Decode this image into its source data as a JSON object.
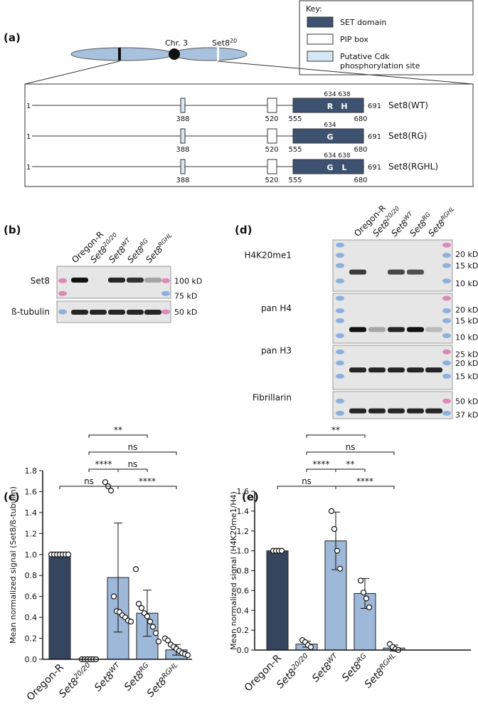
{
  "panels": {
    "a": "(a)",
    "b": "(b)",
    "c": "(c)",
    "d": "(d)",
    "e": "(e)"
  },
  "key": {
    "title": "Key:",
    "items": [
      {
        "label": [
          "SET domain"
        ],
        "color": "#3d5270"
      },
      {
        "label": [
          "PIP box"
        ],
        "color": "#ffffff"
      },
      {
        "label": [
          "Putative Cdk",
          "phosphorylation site"
        ],
        "color": "#d6e8f5"
      }
    ]
  },
  "chromosome": {
    "name": "Chr. 3",
    "allele": "Set8",
    "allele_sup": "20"
  },
  "constructs": [
    {
      "name": "Set8(WT)",
      "start": 1,
      "end": 691,
      "cdk": 388,
      "pip": 520,
      "set_start": 555,
      "set_end": 680,
      "residues": [
        {
          "position": 634,
          "aa": "R"
        },
        {
          "position": 638,
          "aa": "H"
        }
      ]
    },
    {
      "name": "Set8(RG)",
      "start": 1,
      "end": 691,
      "cdk": 388,
      "pip": 520,
      "set_start": 555,
      "set_end": 680,
      "residues": [
        {
          "position": 634,
          "aa": "G"
        }
      ]
    },
    {
      "name": "Set8(RGHL)",
      "start": 1,
      "end": 691,
      "cdk": 388,
      "pip": 520,
      "set_start": 555,
      "set_end": 680,
      "residues": [
        {
          "position": 634,
          "aa": "G"
        },
        {
          "position": 638,
          "aa": "L"
        }
      ]
    }
  ],
  "lanes": [
    {
      "text": "Oregon-R"
    },
    {
      "text": "Set8",
      "sup": "20/20"
    },
    {
      "text": "Set8",
      "sup": "WT"
    },
    {
      "text": "Set8",
      "sup": "RG"
    },
    {
      "text": "Set8",
      "sup": "RGHL"
    }
  ],
  "blot_b": {
    "rows": [
      {
        "label": "Set8",
        "markers": [
          "100 kD",
          "75 kD"
        ]
      },
      {
        "label": "ß-tubulin",
        "markers": [
          "50 kD"
        ]
      }
    ]
  },
  "blot_d": {
    "rows": [
      {
        "label": "H4K20me1",
        "markers": [
          "20 kD",
          "15 kD",
          "10 kD"
        ]
      },
      {
        "label": "pan H4",
        "markers": [
          "20 kD",
          "15 kD",
          "10 kD"
        ]
      },
      {
        "label": "pan H3",
        "markers": [
          "25 kD",
          "20 kD",
          "15 kD"
        ]
      },
      {
        "label": "Fibrillarin",
        "markers": [
          "50 kD",
          "37 kD"
        ]
      }
    ]
  },
  "chart_data": [
    {
      "type": "bar",
      "y_label": "Mean normalized signal (Set8/ß-tubulin)",
      "categories": [
        {
          "text": "Oregon-R"
        },
        {
          "text": "Set8",
          "sup": "20/20"
        },
        {
          "text": "Set8",
          "sup": "WT"
        },
        {
          "text": "Set8",
          "sup": "RG"
        },
        {
          "text": "Set8",
          "sup": "RGHL"
        }
      ],
      "values": [
        1.0,
        0.0,
        0.78,
        0.44,
        0.09
      ],
      "errors": [
        0,
        0,
        0.52,
        0.22,
        0.05
      ],
      "bar_colors": [
        "#36455e",
        "#9db8d8",
        "#9db8d8",
        "#9db8d8",
        "#9db8d8"
      ],
      "points": [
        [
          1,
          1,
          1,
          1,
          1,
          1,
          1
        ],
        [
          0,
          0,
          0,
          0,
          0,
          0
        ],
        [
          1.69,
          1.65,
          1.61,
          0.6,
          0.46,
          0.45,
          0.42,
          0.4,
          0.37,
          0.36
        ],
        [
          0.86,
          0.53,
          0.49,
          0.44,
          0.41,
          0.36,
          0.31,
          0.25,
          0.17
        ],
        [
          0.2,
          0.18,
          0.14,
          0.12,
          0.1,
          0.08,
          0.06,
          0.05,
          0.04
        ]
      ],
      "ylim": [
        0,
        1.8
      ],
      "yticks": [
        {
          "value": 0,
          "label": "0.0"
        },
        0.2,
        0.4,
        0.6,
        0.8,
        {
          "value": 1,
          "label": "1.0"
        },
        1.2,
        1.4,
        1.6,
        1.8
      ],
      "comparisons": [
        {
          "pair": [
            0,
            2
          ],
          "label": "ns"
        },
        {
          "pair": [
            2,
            4
          ],
          "label": "****"
        },
        {
          "pair": [
            1,
            2
          ],
          "label": "****"
        },
        {
          "pair": [
            2,
            3
          ],
          "label": "ns"
        },
        {
          "pair": [
            1,
            4
          ],
          "label": "ns"
        },
        {
          "pair": [
            1,
            3
          ],
          "label": "**"
        }
      ]
    },
    {
      "type": "bar",
      "y_label": "Mean normalized signal (H4K20me1/H4)",
      "categories": [
        {
          "text": "Oregon-R"
        },
        {
          "text": "Set8",
          "sup": "20/20"
        },
        {
          "text": "Set8",
          "sup": "WT"
        },
        {
          "text": "Set8",
          "sup": "RG"
        },
        {
          "text": "Set8",
          "sup": "RGHL"
        }
      ],
      "values": [
        1.0,
        0.06,
        1.1,
        0.57,
        0.02
      ],
      "errors": [
        0,
        0.03,
        0.29,
        0.15,
        0.03
      ],
      "bar_colors": [
        "#36455e",
        "#9db8d8",
        "#9db8d8",
        "#9db8d8",
        "#9db8d8"
      ],
      "points": [
        [
          1,
          1,
          1,
          1
        ],
        [
          0.1,
          0.08,
          0.05,
          0.03
        ],
        [
          1.4,
          1.22,
          1.0,
          0.82
        ],
        [
          0.7,
          0.58,
          0.52,
          0.43
        ],
        [
          0.06,
          0.03,
          0.01,
          0.0
        ]
      ],
      "ylim": [
        0,
        1.6
      ],
      "yticks": [
        {
          "value": 0,
          "label": "0.0"
        },
        0.2,
        0.4,
        0.6,
        0.8,
        {
          "value": 1,
          "label": "1.0"
        },
        1.2,
        1.4,
        1.6
      ],
      "comparisons": [
        {
          "pair": [
            0,
            2
          ],
          "label": "ns"
        },
        {
          "pair": [
            2,
            4
          ],
          "label": "****"
        },
        {
          "pair": [
            1,
            2
          ],
          "label": "****"
        },
        {
          "pair": [
            2,
            3
          ],
          "label": "**"
        },
        {
          "pair": [
            1,
            4
          ],
          "label": "ns"
        },
        {
          "pair": [
            1,
            3
          ],
          "label": "**"
        }
      ]
    }
  ]
}
